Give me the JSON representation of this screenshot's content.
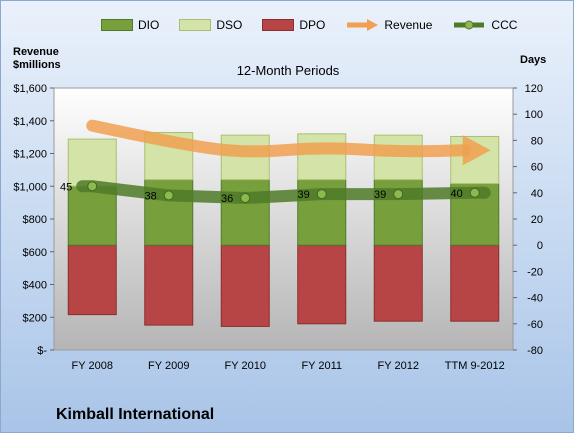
{
  "chart_data": {
    "type": "bar",
    "subtitle": "12-Month Periods",
    "footer_title": "Kimball International",
    "y_left": {
      "title_line1": "Revenue",
      "title_line2": "$millions",
      "range": [
        0,
        1600
      ],
      "step": 200,
      "ticks": [
        "$-",
        "$200",
        "$400",
        "$600",
        "$800",
        "$1,000",
        "$1,200",
        "$1,400",
        "$1,600"
      ]
    },
    "y_right": {
      "title": "Days",
      "range": [
        -80,
        120
      ],
      "step": 20,
      "ticks": [
        "-80",
        "-60",
        "-40",
        "-20",
        "0",
        "20",
        "40",
        "60",
        "80",
        "100",
        "120"
      ]
    },
    "categories": [
      "FY 2008",
      "FY 2009",
      "FY 2010",
      "FY 2011",
      "FY 2012",
      "TTM 9-2012"
    ],
    "series": [
      {
        "name": "DIO",
        "axis": "right",
        "type": "stacked-bar",
        "color": "#77a03c",
        "values": [
          45,
          50,
          50,
          50,
          50,
          47
        ]
      },
      {
        "name": "DSO",
        "axis": "right",
        "type": "stacked-bar",
        "color": "#d4e3a8",
        "values": [
          36,
          36,
          34,
          35,
          34,
          36
        ]
      },
      {
        "name": "DPO",
        "axis": "right",
        "type": "stacked-bar-negative",
        "color": "#b84545",
        "values": [
          -53,
          -61,
          -62,
          -60,
          -58,
          -58
        ]
      },
      {
        "name": "Revenue",
        "axis": "left",
        "type": "line-arrow",
        "color": "#f0a050",
        "values": [
          1370,
          1270,
          1200,
          1240,
          1210,
          1220
        ]
      },
      {
        "name": "CCC",
        "axis": "right",
        "type": "line-dots",
        "color": "#4f7a28",
        "values": [
          45,
          38,
          36,
          39,
          39,
          40
        ]
      }
    ],
    "ccc_labels": [
      "45",
      "38",
      "36",
      "39",
      "39",
      "40"
    ],
    "grid": false,
    "legend_position": "top"
  }
}
